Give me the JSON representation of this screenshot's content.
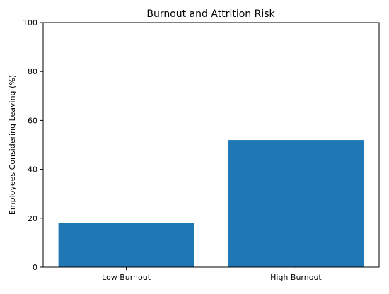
{
  "chart_data": {
    "type": "bar",
    "title": "Burnout and Attrition Risk",
    "xlabel": "",
    "ylabel": "Employees Considering Leaving (%)",
    "categories": [
      "Low Burnout",
      "High Burnout"
    ],
    "values": [
      18,
      52
    ],
    "ylim": [
      0,
      100
    ],
    "yticks": [
      0,
      20,
      40,
      60,
      80,
      100
    ],
    "grid": false,
    "bar_color": "#1f77b4"
  }
}
